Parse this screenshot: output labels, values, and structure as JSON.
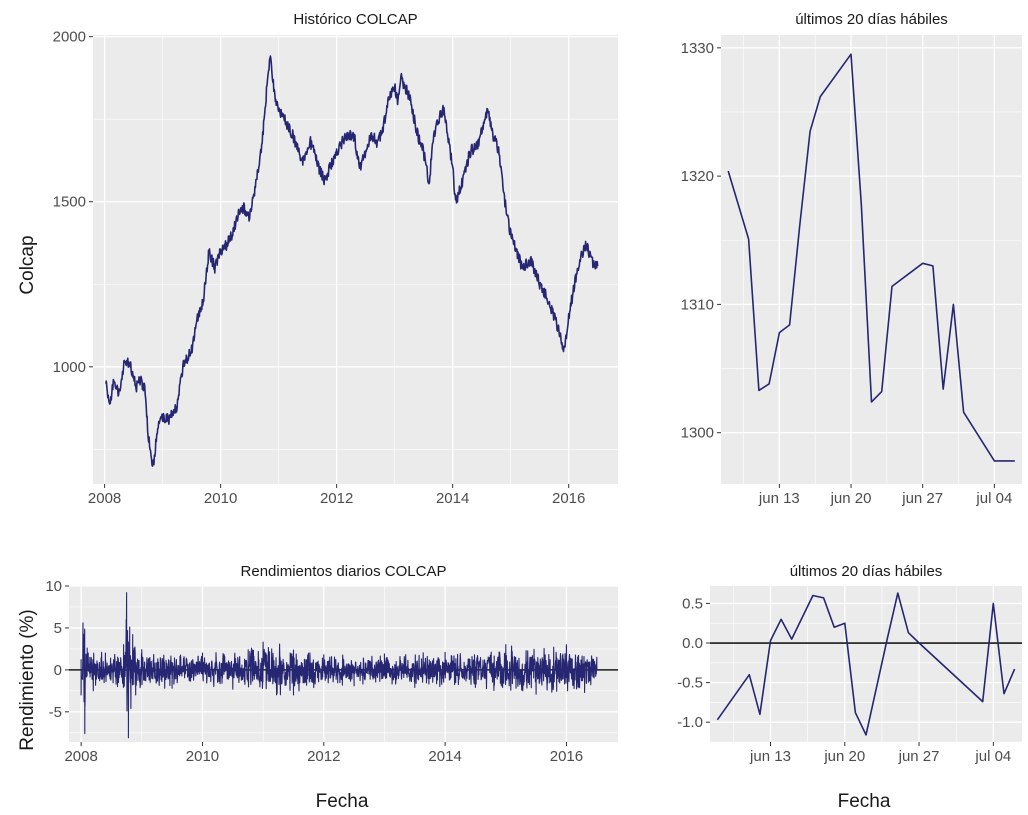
{
  "colors": {
    "line": "#262673",
    "panel": "#ebebeb",
    "zero_line": "#1a1a1a"
  },
  "shared_labels": {
    "colcap_ylabel": "Colcap",
    "returns_ylabel": "Rendimiento (%)",
    "fecha_xlabel": "Fecha"
  },
  "chart_data": [
    {
      "id": "historico",
      "type": "line",
      "title": "Histórico COLCAP",
      "xlabel": "",
      "ylabel": "Colcap",
      "xlim": [
        2007.8,
        2016.85
      ],
      "ylim": [
        645,
        2005
      ],
      "x_ticks": [
        2008,
        2010,
        2012,
        2014,
        2016
      ],
      "x_tick_labels": [
        "2008",
        "2010",
        "2012",
        "2014",
        "2016"
      ],
      "y_ticks": [
        1000,
        1500,
        2000
      ],
      "y_tick_labels": [
        "1000",
        "1500",
        "2000"
      ],
      "series": [
        {
          "x": [
            2008.02,
            2008.08,
            2008.15,
            2008.25,
            2008.35,
            2008.45,
            2008.55,
            2008.62,
            2008.7,
            2008.75,
            2008.8,
            2008.85,
            2008.9,
            2008.98,
            2009.1,
            2009.25,
            2009.35,
            2009.5,
            2009.6,
            2009.7,
            2009.8,
            2009.9,
            2010.0,
            2010.1,
            2010.2,
            2010.3,
            2010.4,
            2010.5,
            2010.6,
            2010.7,
            2010.75,
            2010.8,
            2010.85,
            2010.95,
            2011.1,
            2011.25,
            2011.4,
            2011.55,
            2011.7,
            2011.8,
            2011.9,
            2012.0,
            2012.15,
            2012.3,
            2012.4,
            2012.5,
            2012.6,
            2012.7,
            2012.8,
            2012.9,
            2013.0,
            2013.05,
            2013.1,
            2013.25,
            2013.4,
            2013.5,
            2013.6,
            2013.65,
            2013.75,
            2013.85,
            2014.0,
            2014.05,
            2014.15,
            2014.3,
            2014.45,
            2014.6,
            2014.7,
            2014.8,
            2014.9,
            2015.0,
            2015.1,
            2015.2,
            2015.35,
            2015.5,
            2015.65,
            2015.75,
            2015.85,
            2015.92,
            2016.0,
            2016.1,
            2016.2,
            2016.3,
            2016.4,
            2016.5
          ],
          "y": [
            960,
            880,
            950,
            920,
            1020,
            1000,
            940,
            960,
            930,
            800,
            720,
            700,
            800,
            850,
            840,
            880,
            1000,
            1050,
            1150,
            1200,
            1350,
            1300,
            1350,
            1370,
            1400,
            1460,
            1480,
            1450,
            1550,
            1650,
            1750,
            1850,
            1940,
            1800,
            1750,
            1700,
            1620,
            1680,
            1600,
            1560,
            1610,
            1650,
            1700,
            1700,
            1600,
            1650,
            1700,
            1680,
            1720,
            1820,
            1850,
            1800,
            1880,
            1820,
            1700,
            1650,
            1550,
            1680,
            1750,
            1780,
            1600,
            1500,
            1550,
            1650,
            1680,
            1780,
            1700,
            1650,
            1500,
            1400,
            1350,
            1300,
            1320,
            1250,
            1200,
            1150,
            1100,
            1050,
            1150,
            1250,
            1330,
            1370,
            1320,
            1305
          ]
        }
      ]
    },
    {
      "id": "ultimos20_nivel",
      "type": "line",
      "title": "últimos 20 días hábiles",
      "xlabel": "",
      "ylabel": "",
      "xlim": [
        7.3,
        36.7
      ],
      "ylim": [
        1296,
        1331
      ],
      "x_ticks": [
        13,
        20,
        27,
        34
      ],
      "x_tick_labels": [
        "jun 13",
        "jun 20",
        "jun 27",
        "jul 04"
      ],
      "y_ticks": [
        1300,
        1310,
        1320,
        1330
      ],
      "y_tick_labels": [
        "1300",
        "1310",
        "1320",
        "1330"
      ],
      "series": [
        {
          "x": [
            8,
            10,
            11,
            12,
            13,
            14,
            15,
            16,
            17,
            20,
            21,
            22,
            23,
            24,
            27,
            28,
            29,
            30,
            31,
            34,
            35,
            36
          ],
          "y": [
            1320.4,
            1315.1,
            1303.3,
            1303.8,
            1307.8,
            1308.4,
            1316.2,
            1323.5,
            1326.2,
            1329.5,
            1317.8,
            1302.4,
            1303.2,
            1311.4,
            1313.2,
            1313.0,
            1303.4,
            1310.0,
            1301.6,
            1297.8,
            1297.8,
            1297.8
          ]
        }
      ]
    },
    {
      "id": "rendimientos",
      "type": "line",
      "title": "Rendimientos diarios COLCAP",
      "xlabel": "Fecha",
      "ylabel": "Rendimiento (%)",
      "xlim": [
        2007.8,
        2016.85
      ],
      "ylim": [
        -8.6,
        10.0
      ],
      "x_ticks": [
        2008,
        2010,
        2012,
        2014,
        2016
      ],
      "x_tick_labels": [
        "2008",
        "2010",
        "2012",
        "2014",
        "2016"
      ],
      "y_ticks": [
        -5,
        0,
        5,
        10
      ],
      "y_tick_labels": [
        "-5",
        "0",
        "5",
        "10"
      ],
      "reference_line": 0,
      "series": [
        {
          "x": [
            2008.0,
            2008.03,
            2008.06,
            2008.1,
            2008.2,
            2008.4,
            2008.6,
            2008.7,
            2008.75,
            2008.78,
            2008.8,
            2008.82,
            2008.85,
            2008.9,
            2009.0,
            2009.5,
            2010.0,
            2010.5,
            2011.0,
            2011.5,
            2012.0,
            2012.5,
            2013.0,
            2013.5,
            2014.0,
            2014.5,
            2015.0,
            2015.5,
            2016.0,
            2016.3,
            2016.5
          ],
          "y": [
            -3.0,
            5.6,
            -7.6,
            2.6,
            -2.5,
            2.0,
            -2.0,
            3.0,
            9.2,
            -8.1,
            5.1,
            -4.6,
            4.2,
            -3.0,
            2.4,
            -2.2,
            2.0,
            -2.3,
            3.3,
            -3.0,
            1.8,
            -1.9,
            1.9,
            -2.1,
            2.1,
            -2.1,
            3.0,
            -2.9,
            3.0,
            -2.7,
            1.5
          ]
        }
      ]
    },
    {
      "id": "ultimos20_rend",
      "type": "line",
      "title": "últimos 20 días hábiles",
      "xlabel": "Fecha",
      "ylabel": "",
      "xlim": [
        7.3,
        36.7
      ],
      "ylim": [
        -1.25,
        0.72
      ],
      "x_ticks": [
        13,
        20,
        27,
        34
      ],
      "x_tick_labels": [
        "jun 13",
        "jun 20",
        "jun 27",
        "jul 04"
      ],
      "y_ticks": [
        -1.0,
        -0.5,
        0.0,
        0.5
      ],
      "y_tick_labels": [
        "-1.0",
        "-0.5",
        "0.0",
        "0.5"
      ],
      "reference_line": 0,
      "series": [
        {
          "x": [
            8,
            11,
            12,
            13,
            14,
            15,
            17,
            18,
            19,
            20,
            21,
            22,
            24,
            25,
            26,
            27,
            33,
            34,
            35,
            36
          ],
          "y": [
            -0.97,
            -0.4,
            -0.9,
            0.03,
            0.3,
            0.05,
            0.6,
            0.57,
            0.2,
            0.25,
            -0.88,
            -1.16,
            0.05,
            0.63,
            0.13,
            0.0,
            -0.74,
            0.5,
            -0.64,
            -0.33
          ]
        }
      ]
    }
  ]
}
